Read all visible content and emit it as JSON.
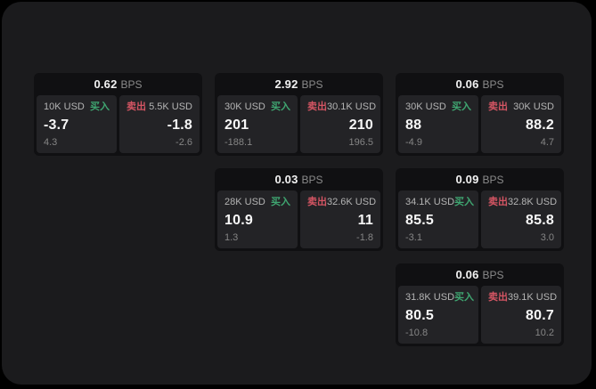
{
  "labels": {
    "bps_unit": "BPS",
    "buy": "买入",
    "sell": "卖出"
  },
  "colors": {
    "window_bg": "#1b1b1d",
    "card_bg": "#101012",
    "panel_bg": "#232326",
    "buy_accent": "#3fa671",
    "sell_accent": "#d45563"
  },
  "cards": [
    {
      "bps": "0.62",
      "buy": {
        "size": "10K USD",
        "price": "-3.7",
        "change": "4.3"
      },
      "sell": {
        "size": "5.5K USD",
        "price": "-1.8",
        "change": "-2.6"
      }
    },
    {
      "bps": "2.92",
      "buy": {
        "size": "30K USD",
        "price": "201",
        "change": "-188.1"
      },
      "sell": {
        "size": "30.1K USD",
        "price": "210",
        "change": "196.5"
      }
    },
    {
      "bps": "0.06",
      "buy": {
        "size": "30K USD",
        "price": "88",
        "change": "-4.9"
      },
      "sell": {
        "size": "30K USD",
        "price": "88.2",
        "change": "4.7"
      }
    },
    {
      "bps": "0.03",
      "buy": {
        "size": "28K USD",
        "price": "10.9",
        "change": "1.3"
      },
      "sell": {
        "size": "32.6K USD",
        "price": "11",
        "change": "-1.8"
      }
    },
    {
      "bps": "0.09",
      "buy": {
        "size": "34.1K USD",
        "price": "85.5",
        "change": "-3.1"
      },
      "sell": {
        "size": "32.8K USD",
        "price": "85.8",
        "change": "3.0"
      }
    },
    {
      "bps": "0.06",
      "buy": {
        "size": "31.8K USD",
        "price": "80.5",
        "change": "-10.8"
      },
      "sell": {
        "size": "39.1K USD",
        "price": "80.7",
        "change": "10.2"
      }
    }
  ]
}
